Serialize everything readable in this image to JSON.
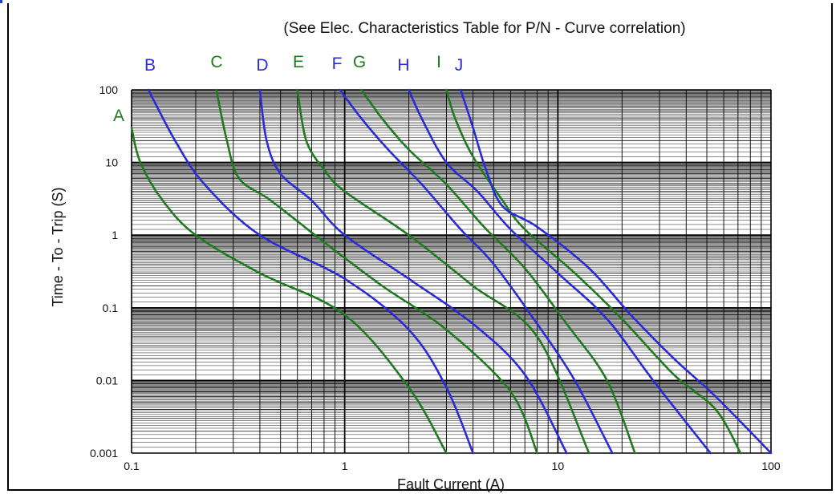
{
  "chart_data": {
    "type": "line",
    "title": "",
    "subtitle": "(See Elec. Characteristics Table for P/N - Curve correlation)",
    "xlabel": "Fault Current (A)",
    "ylabel": "Time - To - Trip (S)",
    "xscale": "log",
    "yscale": "log",
    "xlim": [
      0.1,
      100
    ],
    "ylim": [
      0.001,
      100
    ],
    "grid": true,
    "x_tick_labels": [
      "0.1",
      "1",
      "10",
      "100"
    ],
    "y_tick_labels": [
      "100",
      "10",
      "1",
      "0.1",
      "0.01",
      "0.001"
    ],
    "colors": {
      "blue": "#2a2ad6",
      "green": "#1f7a1f",
      "grid": "#000000"
    },
    "series": [
      {
        "name": "A",
        "color": "green",
        "points": [
          [
            0.1,
            30
          ],
          [
            0.11,
            10
          ],
          [
            0.14,
            3
          ],
          [
            0.2,
            1
          ],
          [
            0.4,
            0.3
          ],
          [
            1,
            0.08
          ],
          [
            2,
            0.008
          ],
          [
            3,
            0.001
          ]
        ]
      },
      {
        "name": "B",
        "color": "blue",
        "points": [
          [
            0.12,
            100
          ],
          [
            0.16,
            20
          ],
          [
            0.22,
            5
          ],
          [
            0.4,
            1
          ],
          [
            1,
            0.25
          ],
          [
            2,
            0.05
          ],
          [
            3,
            0.008
          ],
          [
            4,
            0.001
          ]
        ]
      },
      {
        "name": "C",
        "color": "green",
        "points": [
          [
            0.25,
            100
          ],
          [
            0.28,
            20
          ],
          [
            0.32,
            6
          ],
          [
            0.45,
            3
          ],
          [
            0.8,
            0.8
          ],
          [
            1.5,
            0.2
          ],
          [
            3,
            0.05
          ],
          [
            6,
            0.007
          ],
          [
            8,
            0.001
          ]
        ]
      },
      {
        "name": "D",
        "color": "blue",
        "points": [
          [
            0.4,
            100
          ],
          [
            0.43,
            20
          ],
          [
            0.5,
            7
          ],
          [
            0.7,
            3
          ],
          [
            1,
            1
          ],
          [
            2,
            0.25
          ],
          [
            4,
            0.06
          ],
          [
            7,
            0.012
          ],
          [
            11,
            0.001
          ]
        ]
      },
      {
        "name": "E",
        "color": "green",
        "points": [
          [
            0.6,
            100
          ],
          [
            0.66,
            20
          ],
          [
            0.8,
            8
          ],
          [
            1,
            4
          ],
          [
            2,
            1
          ],
          [
            4,
            0.2
          ],
          [
            8,
            0.04
          ],
          [
            14,
            0.001
          ]
        ]
      },
      {
        "name": "F",
        "color": "blue",
        "points": [
          [
            0.95,
            100
          ],
          [
            1.2,
            40
          ],
          [
            1.6,
            15
          ],
          [
            2.3,
            5
          ],
          [
            3.5,
            1.2
          ],
          [
            5,
            0.4
          ],
          [
            8,
            0.06
          ],
          [
            12,
            0.01
          ],
          [
            18,
            0.001
          ]
        ]
      },
      {
        "name": "G",
        "color": "green",
        "points": [
          [
            1.2,
            100
          ],
          [
            1.5,
            40
          ],
          [
            2,
            15
          ],
          [
            3,
            5
          ],
          [
            4.5,
            1.3
          ],
          [
            7,
            0.35
          ],
          [
            11,
            0.06
          ],
          [
            17,
            0.01
          ],
          [
            23,
            0.001
          ]
        ]
      },
      {
        "name": "H",
        "color": "blue",
        "points": [
          [
            2,
            100
          ],
          [
            2.3,
            40
          ],
          [
            3,
            10
          ],
          [
            4.2,
            4
          ],
          [
            6,
            1.2
          ],
          [
            10,
            0.3
          ],
          [
            17,
            0.07
          ],
          [
            28,
            0.01
          ],
          [
            52,
            0.001
          ]
        ]
      },
      {
        "name": "I",
        "color": "green",
        "points": [
          [
            3,
            100
          ],
          [
            3.3,
            40
          ],
          [
            4,
            12
          ],
          [
            5.5,
            3
          ],
          [
            7,
            1.2
          ],
          [
            12,
            0.3
          ],
          [
            20,
            0.07
          ],
          [
            35,
            0.012
          ],
          [
            55,
            0.004
          ],
          [
            72,
            0.001
          ]
        ]
      },
      {
        "name": "J",
        "color": "blue",
        "points": [
          [
            3.5,
            100
          ],
          [
            4,
            30
          ],
          [
            4.6,
            8
          ],
          [
            5.5,
            2.5
          ],
          [
            8,
            1.3
          ],
          [
            14,
            0.35
          ],
          [
            22,
            0.08
          ],
          [
            35,
            0.02
          ],
          [
            55,
            0.006
          ],
          [
            100,
            0.001
          ]
        ]
      }
    ]
  }
}
